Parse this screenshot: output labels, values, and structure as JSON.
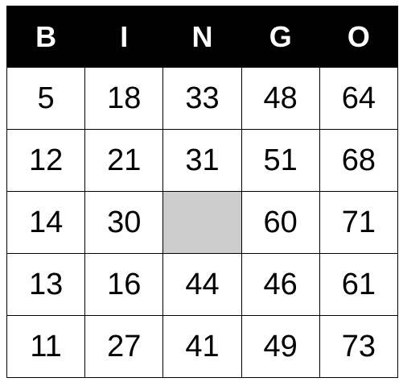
{
  "header": [
    "B",
    "I",
    "N",
    "G",
    "O"
  ],
  "rows": [
    [
      "5",
      "18",
      "33",
      "48",
      "64"
    ],
    [
      "12",
      "21",
      "31",
      "51",
      "68"
    ],
    [
      "14",
      "30",
      "",
      "60",
      "71"
    ],
    [
      "13",
      "16",
      "44",
      "46",
      "61"
    ],
    [
      "11",
      "27",
      "41",
      "49",
      "73"
    ]
  ],
  "free_space": {
    "row": 2,
    "col": 2,
    "color": "#cccccc"
  },
  "colors": {
    "header_bg": "#000000",
    "header_text": "#ffffff",
    "cell_bg": "#ffffff",
    "grid_line": "#000000"
  }
}
